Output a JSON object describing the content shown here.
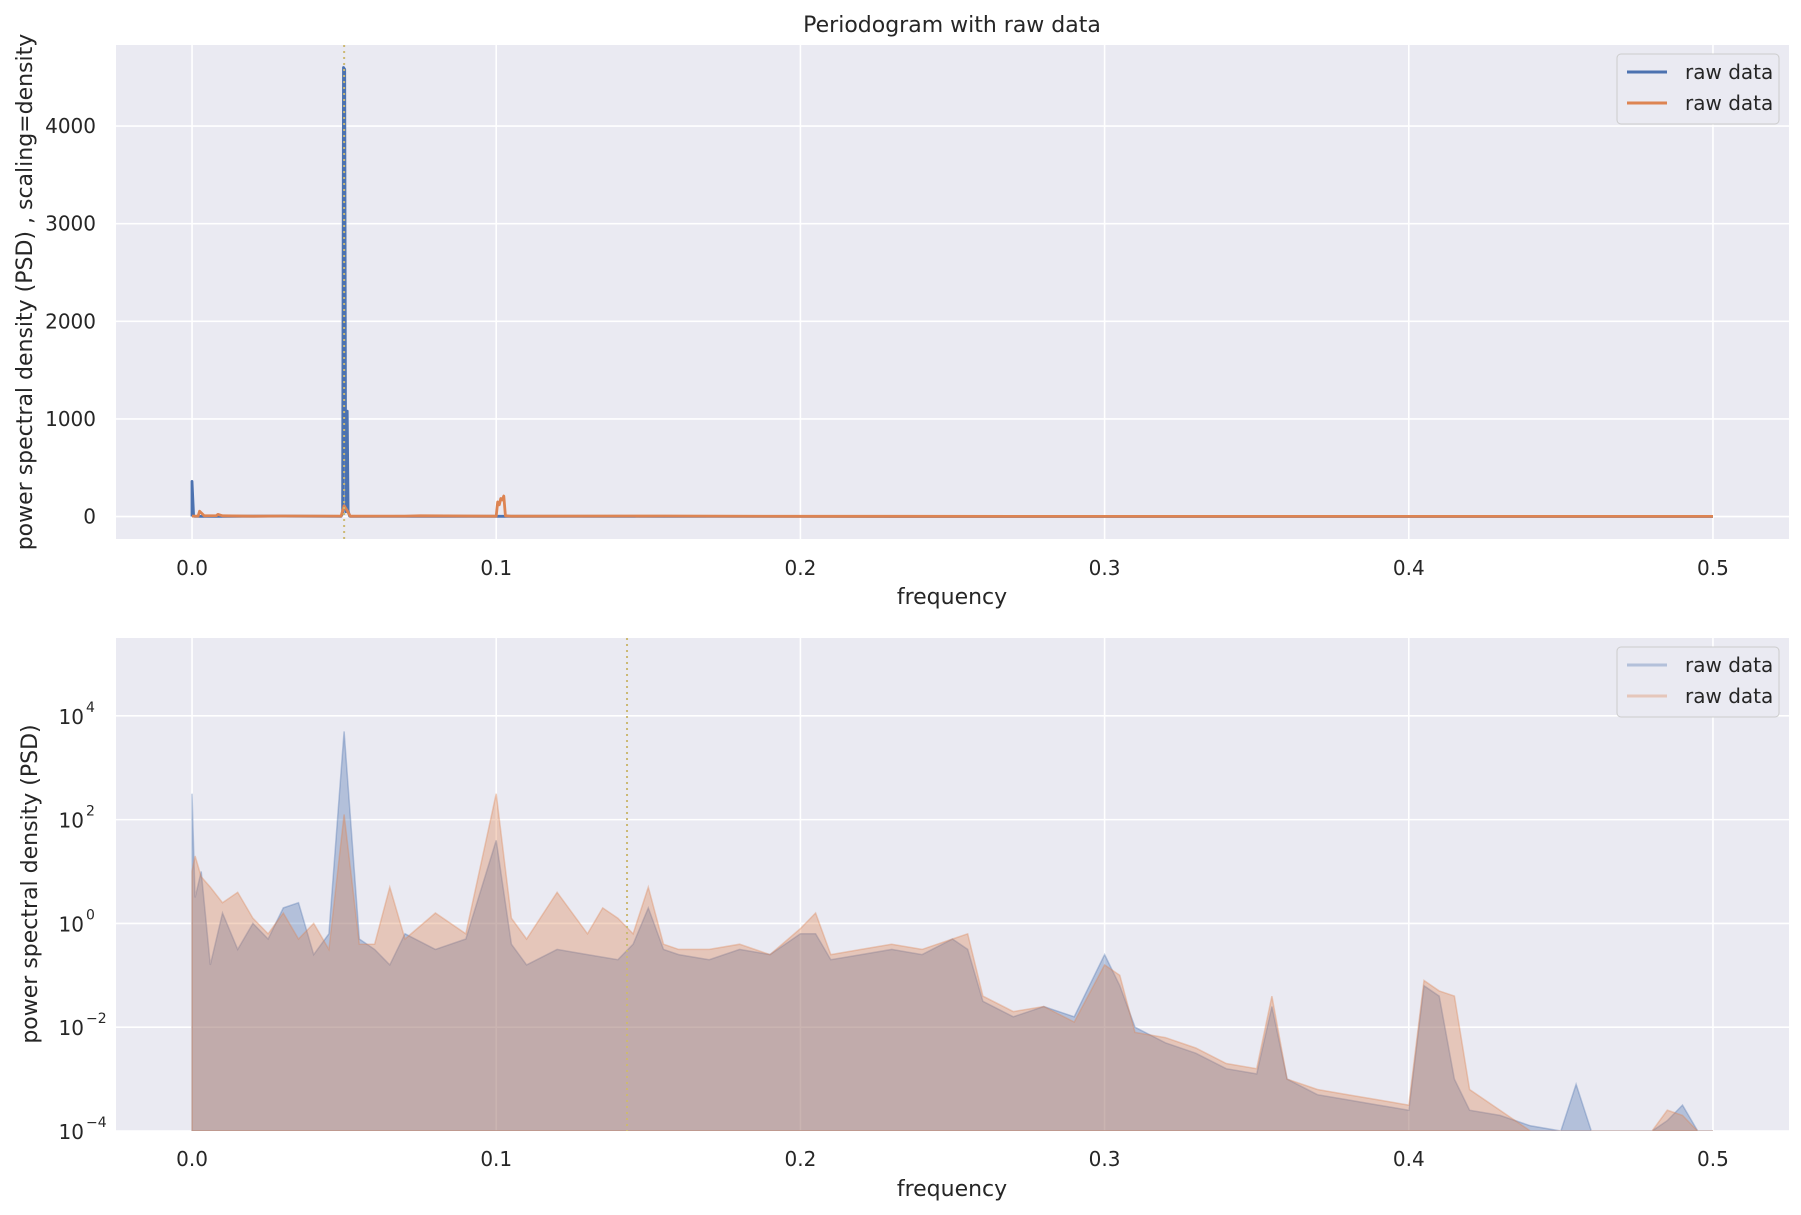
{
  "chart_data": [
    {
      "type": "line",
      "title": "Periodogram with raw data",
      "xlabel": "frequency",
      "ylabel": "power spectral density (PSD) , scaling=density",
      "xlim": [
        -0.025,
        0.525
      ],
      "ylim": [
        -230,
        4830
      ],
      "xticks": [
        0.0,
        0.1,
        0.2,
        0.3,
        0.4,
        0.5
      ],
      "xtick_labels": [
        "0.0",
        "0.1",
        "0.2",
        "0.3",
        "0.4",
        "0.5"
      ],
      "yticks": [
        0,
        1000,
        2000,
        3000,
        4000
      ],
      "ytick_labels": [
        "0",
        "1000",
        "2000",
        "3000",
        "4000"
      ],
      "yscale": "linear",
      "grid": true,
      "legend_position": "top-right",
      "vline": {
        "x": 0.05,
        "style": "dotted",
        "color": "#ccb974"
      },
      "series": [
        {
          "name": "raw data",
          "color": "#4c72b0",
          "x": [
            0.0,
            0.0,
            0.0005,
            0.001,
            0.01,
            0.03,
            0.049,
            0.0495,
            0.0498,
            0.0502,
            0.0505,
            0.051,
            0.0513,
            0.0518,
            0.0522,
            0.06,
            0.1,
            0.2,
            0.3,
            0.4,
            0.5
          ],
          "y": [
            0,
            360,
            5,
            2,
            3,
            5,
            2,
            30,
            4600,
            4580,
            50,
            1080,
            60,
            5,
            2,
            1,
            3,
            1,
            0,
            0,
            0
          ]
        },
        {
          "name": "raw data",
          "color": "#dd8452",
          "x": [
            0.0,
            0.002,
            0.0025,
            0.004,
            0.008,
            0.0085,
            0.01,
            0.02,
            0.03,
            0.049,
            0.05,
            0.051,
            0.052,
            0.07,
            0.075,
            0.1,
            0.1005,
            0.101,
            0.1015,
            0.102,
            0.1025,
            0.103,
            0.105,
            0.155,
            0.2,
            0.3,
            0.4,
            0.5
          ],
          "y": [
            5,
            5,
            55,
            8,
            10,
            22,
            8,
            4,
            6,
            5,
            110,
            60,
            4,
            5,
            8,
            4,
            150,
            120,
            185,
            170,
            210,
            8,
            4,
            6,
            3,
            2,
            1,
            1
          ]
        }
      ]
    },
    {
      "type": "line",
      "title": "",
      "xlabel": "frequency",
      "ylabel": "power spectral density (PSD)",
      "xlim": [
        -0.025,
        0.525
      ],
      "ylim_log10": [
        -4,
        5.5
      ],
      "xticks": [
        0.0,
        0.1,
        0.2,
        0.3,
        0.4,
        0.5
      ],
      "xtick_labels": [
        "0.0",
        "0.1",
        "0.2",
        "0.3",
        "0.4",
        "0.5"
      ],
      "yticks_log10": [
        -4,
        -2,
        0,
        2,
        4
      ],
      "ytick_base": "10",
      "ytick_exponents": [
        "−4",
        "−2",
        "0",
        "2",
        "4"
      ],
      "yscale": "log",
      "grid": true,
      "legend_position": "top-right",
      "vline": {
        "x": 0.143,
        "style": "dotted",
        "color": "#ccb974"
      },
      "series": [
        {
          "name": "raw data",
          "color": "#4c72b0",
          "opacity": 0.35,
          "x": [
            0.0,
            0.0,
            0.001,
            0.003,
            0.006,
            0.01,
            0.015,
            0.02,
            0.025,
            0.03,
            0.035,
            0.04,
            0.045,
            0.05,
            0.055,
            0.06,
            0.065,
            0.07,
            0.08,
            0.09,
            0.1,
            0.105,
            0.11,
            0.12,
            0.13,
            0.14,
            0.145,
            0.15,
            0.155,
            0.16,
            0.17,
            0.18,
            0.19,
            0.2,
            0.205,
            0.21,
            0.22,
            0.23,
            0.24,
            0.25,
            0.255,
            0.26,
            0.27,
            0.28,
            0.29,
            0.3,
            0.305,
            0.31,
            0.32,
            0.33,
            0.34,
            0.35,
            0.355,
            0.36,
            0.37,
            0.38,
            0.39,
            0.4,
            0.405,
            0.41,
            0.415,
            0.42,
            0.43,
            0.44,
            0.45,
            0.455,
            0.46,
            0.47,
            0.48,
            0.485,
            0.49,
            0.495,
            0.5
          ],
          "y_log10": [
            -4,
            2.5,
            0.5,
            1,
            -0.8,
            0.2,
            -0.5,
            0,
            -0.3,
            0.3,
            0.4,
            -0.6,
            -0.2,
            3.7,
            -0.3,
            -0.5,
            -0.8,
            -0.2,
            -0.5,
            -0.3,
            1.6,
            -0.4,
            -0.8,
            -0.5,
            -0.6,
            -0.7,
            -0.4,
            0.3,
            -0.5,
            -0.6,
            -0.7,
            -0.5,
            -0.6,
            -0.2,
            -0.2,
            -0.7,
            -0.6,
            -0.5,
            -0.6,
            -0.3,
            -0.5,
            -1.5,
            -1.8,
            -1.6,
            -1.8,
            -0.6,
            -1.2,
            -2.0,
            -2.3,
            -2.5,
            -2.8,
            -2.9,
            -1.6,
            -3.0,
            -3.3,
            -3.4,
            -3.5,
            -3.6,
            -1.2,
            -1.4,
            -3.0,
            -3.6,
            -3.7,
            -3.9,
            -4,
            -3.1,
            -4,
            -4,
            -4,
            -3.8,
            -3.5,
            -4,
            -4
          ]
        },
        {
          "name": "raw data",
          "color": "#dd8452",
          "opacity": 0.35,
          "x": [
            0.0,
            0.0,
            0.001,
            0.003,
            0.006,
            0.01,
            0.015,
            0.02,
            0.025,
            0.03,
            0.035,
            0.04,
            0.045,
            0.05,
            0.055,
            0.06,
            0.065,
            0.07,
            0.08,
            0.09,
            0.1,
            0.105,
            0.11,
            0.12,
            0.13,
            0.135,
            0.14,
            0.145,
            0.15,
            0.155,
            0.16,
            0.17,
            0.18,
            0.19,
            0.2,
            0.205,
            0.21,
            0.22,
            0.23,
            0.24,
            0.25,
            0.255,
            0.26,
            0.27,
            0.28,
            0.29,
            0.3,
            0.305,
            0.31,
            0.32,
            0.33,
            0.34,
            0.35,
            0.355,
            0.36,
            0.37,
            0.38,
            0.39,
            0.4,
            0.405,
            0.41,
            0.415,
            0.42,
            0.43,
            0.435,
            0.44,
            0.45,
            0.46,
            0.47,
            0.48,
            0.485,
            0.49,
            0.495,
            0.5
          ],
          "y_log10": [
            -4,
            1,
            1.3,
            0.9,
            0.7,
            0.4,
            0.6,
            0.1,
            -0.2,
            0.2,
            -0.3,
            0,
            -0.5,
            2.1,
            -0.4,
            -0.4,
            0.7,
            -0.3,
            0.2,
            -0.2,
            2.5,
            0.1,
            -0.3,
            0.6,
            -0.2,
            0.3,
            0.1,
            -0.2,
            0.7,
            -0.4,
            -0.5,
            -0.5,
            -0.4,
            -0.6,
            -0.1,
            0.2,
            -0.6,
            -0.5,
            -0.4,
            -0.5,
            -0.3,
            -0.2,
            -1.4,
            -1.7,
            -1.6,
            -1.9,
            -0.8,
            -1.0,
            -2.1,
            -2.2,
            -2.4,
            -2.7,
            -2.8,
            -1.4,
            -3.0,
            -3.2,
            -3.3,
            -3.4,
            -3.5,
            -1.1,
            -1.3,
            -1.4,
            -3.2,
            -3.6,
            -3.8,
            -4,
            -4,
            -4,
            -4,
            -4,
            -3.6,
            -3.7,
            -4,
            -4
          ]
        }
      ]
    }
  ]
}
